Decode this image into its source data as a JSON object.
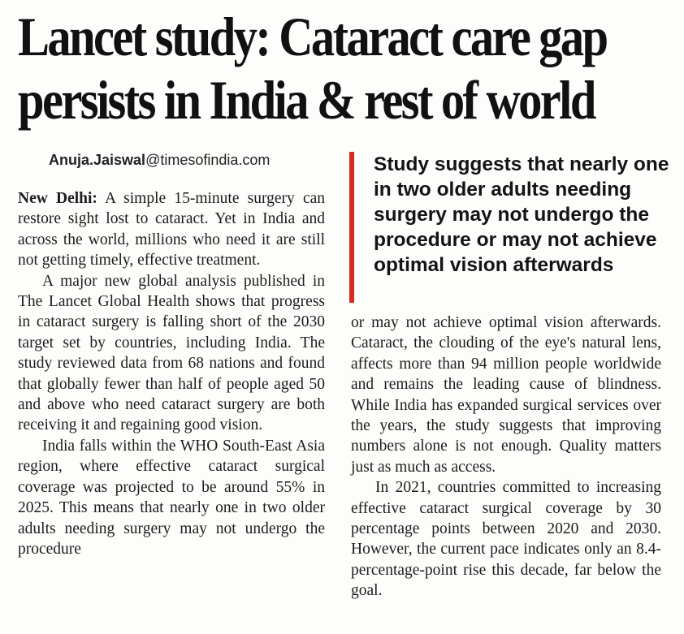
{
  "headline": {
    "line1": "Lancet study: Cataract care gap",
    "line2": "persists in India & rest of world"
  },
  "byline": {
    "name": "Anuja.Jaiswal",
    "domain": "@timesofindia.com"
  },
  "pullquote": "Study suggests that nearly one in two older adults needing surgery may not undergo the procedure or may not achieve optimal vision afterwards",
  "left_column": {
    "dateline": "New Delhi:",
    "p1": "A simple 15-minute surgery can restore sight lost to cataract. Yet in India and across the world, millions who need it are still not getting timely, effective treatment.",
    "p2": "A major new global analysis published in The Lancet Global Health shows that progress in cataract surgery is falling short of the 2030 target set by countries, including India. The study reviewed data from 68 nations and found that globally fewer than half of people aged 50 and above who need cataract surgery are both receiving it and regaining good vision.",
    "p3": "India falls within the WHO South-East Asia region, where effective cataract surgical coverage was projected to be around 55% in 2025. This means that nearly one in two older adults needing surgery may not undergo the procedure"
  },
  "right_column": {
    "p1": "or may not achieve optimal vision afterwards. Cataract, the clouding of the eye's natural lens, affects more than 94 million people worldwide and remains the leading cause of blindness. While India has expanded surgical services over the years, the study suggests that improving numbers alone is not enough. Quality matters just as much as access.",
    "p2": "In 2021, countries committed to increasing effective cataract surgical coverage by 30 percentage points between 2020 and 2030. However, the current pace indicates only an 8.4-percentage-point rise this decade, far below the goal."
  },
  "colors": {
    "accent_bar": "#d92b1f",
    "text": "#1a1a1a",
    "paper": "#fdfdfb"
  }
}
